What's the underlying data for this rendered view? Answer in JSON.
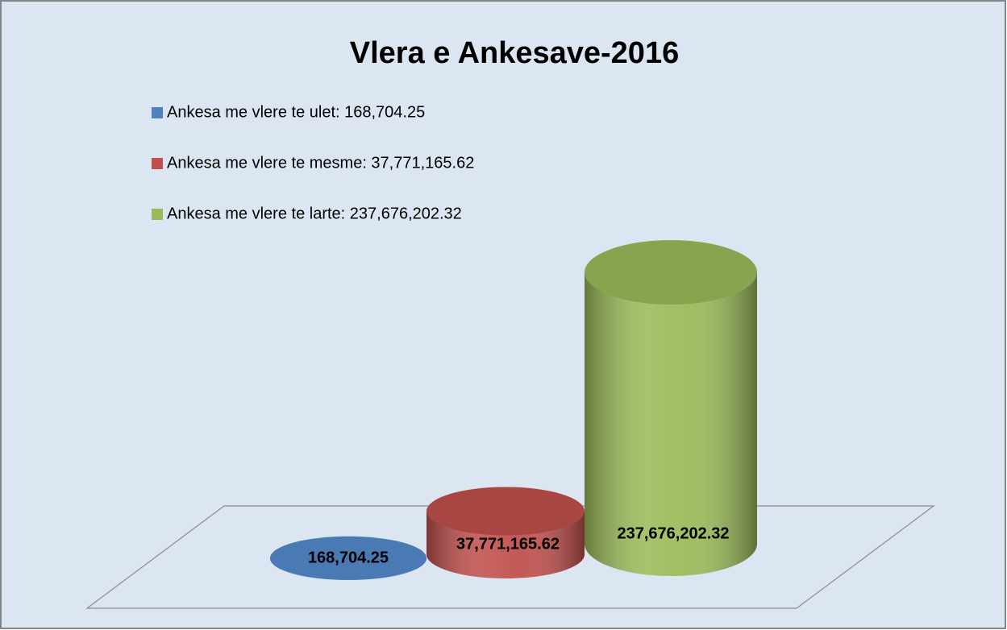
{
  "chart_data": {
    "type": "cylinder",
    "title": "Vlera e Ankesave-2016",
    "series": [
      {
        "name": "Ankesa me vlere te ulet: 168,704.25",
        "color": "#4f81bd",
        "values": [
          168704.25
        ],
        "value_labels": [
          "168,704.25"
        ]
      },
      {
        "name": "Ankesa me vlere te mesme: 37,771,165.62",
        "color": "#c0504d",
        "values": [
          37771165.62
        ],
        "value_labels": [
          "37,771,165.62"
        ]
      },
      {
        "name": "Ankesa me vlere te larte: 237,676,202.32",
        "color": "#9bbb59",
        "values": [
          237676202.32
        ],
        "value_labels": [
          "237,676,202.32"
        ]
      }
    ]
  }
}
